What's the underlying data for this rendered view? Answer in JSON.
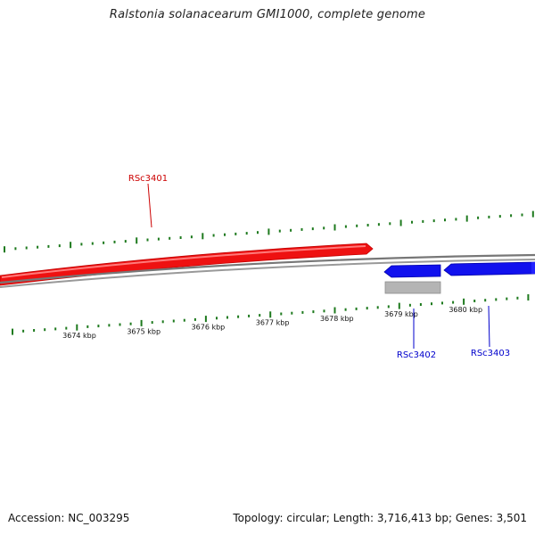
{
  "title": "Ralstonia solanacearum GMI1000, complete genome",
  "footer": {
    "accession": "Accession: NC_003295",
    "summary": "Topology: circular; Length: 3,716,413 bp; Genes: 3,501"
  },
  "colors": {
    "forward_gene": "#ee1111",
    "reverse_gene": "#1111ee",
    "unannotated_feature": "#b4b4b4",
    "backbone": "#777777",
    "tick": "#1e7a1e",
    "forward_label": "#cc0000",
    "reverse_label": "#0000cc"
  },
  "axis": {
    "unit": "kbp",
    "tick_labels": [
      "3674 kbp",
      "3675 kbp",
      "3676 kbp",
      "3677 kbp",
      "3678 kbp",
      "3679 kbp",
      "3680 kbp"
    ]
  },
  "genes": [
    {
      "id": "RSc3401",
      "strand": "forward",
      "color": "#ee1111"
    },
    {
      "id": "RSc3402",
      "strand": "reverse",
      "color": "#1111ee"
    },
    {
      "id": "RSc3403",
      "strand": "reverse",
      "color": "#1111ee"
    }
  ]
}
